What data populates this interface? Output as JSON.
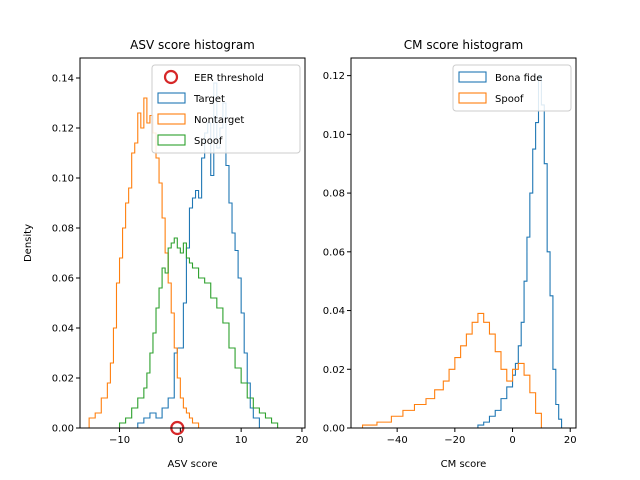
{
  "chart_data": [
    {
      "type": "histogram",
      "title": "ASV score histogram",
      "xlabel": "ASV score",
      "ylabel": "Density",
      "xlim": [
        -16.5,
        20.5
      ],
      "ylim": [
        0,
        0.148
      ],
      "xticks": [
        -10,
        0,
        10,
        20
      ],
      "yticks": [
        0,
        0.02,
        0.04,
        0.06,
        0.08,
        0.1,
        0.12,
        0.14
      ],
      "xtick_labels": [
        "−10",
        "0",
        "10",
        "20"
      ],
      "ytick_labels": [
        "0.00",
        "0.02",
        "0.04",
        "0.06",
        "0.08",
        "0.10",
        "0.12",
        "0.14"
      ],
      "legend_position": "top-right",
      "markers": [
        {
          "name": "EER threshold",
          "x": -0.5,
          "y": 0.0,
          "color": "#d62728"
        }
      ],
      "series": [
        {
          "name": "Target",
          "color": "#1f77b4",
          "x": [
            -6.0,
            -5.0,
            -4.0,
            -3.0,
            -2.0,
            -1.0,
            -0.5,
            0.5,
            1.0,
            1.5,
            2.0,
            2.5,
            3.0,
            3.5,
            4.0,
            4.5,
            5.0,
            5.5,
            6.0,
            6.5,
            7.0,
            7.5,
            8.0,
            8.5,
            9.0,
            9.5,
            10.0,
            10.5,
            11.0,
            11.5,
            12.0,
            13.0,
            14.0
          ],
          "y": [
            0.002,
            0.004,
            0.006,
            0.004,
            0.008,
            0.012,
            0.03,
            0.032,
            0.05,
            0.072,
            0.088,
            0.092,
            0.095,
            0.092,
            0.108,
            0.118,
            0.122,
            0.101,
            0.138,
            0.112,
            0.12,
            0.13,
            0.105,
            0.09,
            0.078,
            0.071,
            0.06,
            0.046,
            0.03,
            0.018,
            0.008,
            0.004,
            0.0
          ]
        },
        {
          "name": "Nontarget",
          "color": "#ff7f0e",
          "x": [
            -14.0,
            -13.0,
            -12.0,
            -11.5,
            -11.0,
            -10.5,
            -10.0,
            -9.5,
            -9.0,
            -8.5,
            -8.0,
            -7.5,
            -7.0,
            -6.5,
            -6.0,
            -5.5,
            -5.0,
            -4.5,
            -4.0,
            -3.5,
            -3.0,
            -2.5,
            -2.0,
            -1.5,
            -1.0,
            -0.5,
            0.0,
            0.5,
            1.0,
            1.5,
            2.0,
            3.0,
            4.0
          ],
          "y": [
            0.004,
            0.006,
            0.012,
            0.018,
            0.026,
            0.04,
            0.058,
            0.068,
            0.08,
            0.09,
            0.096,
            0.11,
            0.114,
            0.126,
            0.12,
            0.132,
            0.122,
            0.125,
            0.118,
            0.108,
            0.098,
            0.084,
            0.07,
            0.058,
            0.046,
            0.032,
            0.02,
            0.012,
            0.008,
            0.006,
            0.004,
            0.002,
            0.0
          ]
        },
        {
          "name": "Spoof",
          "color": "#2ca02c",
          "x": [
            -9.0,
            -8.0,
            -7.0,
            -6.0,
            -5.5,
            -5.0,
            -4.5,
            -4.0,
            -3.5,
            -3.0,
            -2.5,
            -2.0,
            -1.5,
            -1.0,
            -0.5,
            0.0,
            0.5,
            1.0,
            1.5,
            2.0,
            3.0,
            4.0,
            5.0,
            6.0,
            7.0,
            8.0,
            9.0,
            10.0,
            11.0,
            12.0,
            13.0,
            14.0,
            15.0,
            16.0,
            17.0
          ],
          "y": [
            0.002,
            0.004,
            0.008,
            0.012,
            0.016,
            0.022,
            0.03,
            0.038,
            0.048,
            0.056,
            0.064,
            0.062,
            0.072,
            0.074,
            0.076,
            0.072,
            0.07,
            0.074,
            0.068,
            0.066,
            0.064,
            0.06,
            0.058,
            0.052,
            0.048,
            0.042,
            0.032,
            0.024,
            0.018,
            0.012,
            0.008,
            0.006,
            0.004,
            0.002,
            0.0
          ]
        }
      ]
    },
    {
      "type": "histogram",
      "title": "CM score histogram",
      "xlabel": "CM score",
      "ylabel": "",
      "xlim": [
        -56,
        22
      ],
      "ylim": [
        0,
        0.126
      ],
      "xticks": [
        -40,
        -20,
        0,
        20
      ],
      "yticks": [
        0,
        0.02,
        0.04,
        0.06,
        0.08,
        0.1,
        0.12
      ],
      "xtick_labels": [
        "−40",
        "−20",
        "0",
        "20"
      ],
      "ytick_labels": [
        "0.00",
        "0.02",
        "0.04",
        "0.06",
        "0.08",
        "0.10",
        "0.12"
      ],
      "legend_position": "top-right",
      "series": [
        {
          "name": "Bona fide",
          "color": "#1f77b4",
          "x": [
            -10,
            -8,
            -6,
            -4,
            -2,
            0,
            1,
            2,
            3,
            4,
            5,
            6,
            7,
            8,
            9,
            10,
            11,
            12,
            13,
            14,
            15,
            16,
            17,
            18
          ],
          "y": [
            0.001,
            0.002,
            0.004,
            0.006,
            0.01,
            0.014,
            0.018,
            0.022,
            0.028,
            0.036,
            0.05,
            0.065,
            0.08,
            0.095,
            0.104,
            0.12,
            0.11,
            0.09,
            0.06,
            0.045,
            0.02,
            0.008,
            0.003,
            0.0
          ]
        },
        {
          "name": "Spoof",
          "color": "#ff7f0e",
          "x": [
            -47,
            -42,
            -38,
            -34,
            -30,
            -27,
            -24,
            -22,
            -20,
            -18,
            -16,
            -14,
            -12,
            -10,
            -8,
            -6,
            -4,
            -2,
            0,
            2,
            4,
            6,
            8,
            10,
            12
          ],
          "y": [
            0.001,
            0.002,
            0.004,
            0.006,
            0.008,
            0.01,
            0.013,
            0.016,
            0.02,
            0.024,
            0.028,
            0.032,
            0.036,
            0.039,
            0.036,
            0.032,
            0.026,
            0.02,
            0.016,
            0.02,
            0.022,
            0.018,
            0.012,
            0.005,
            0.0
          ]
        }
      ]
    }
  ]
}
